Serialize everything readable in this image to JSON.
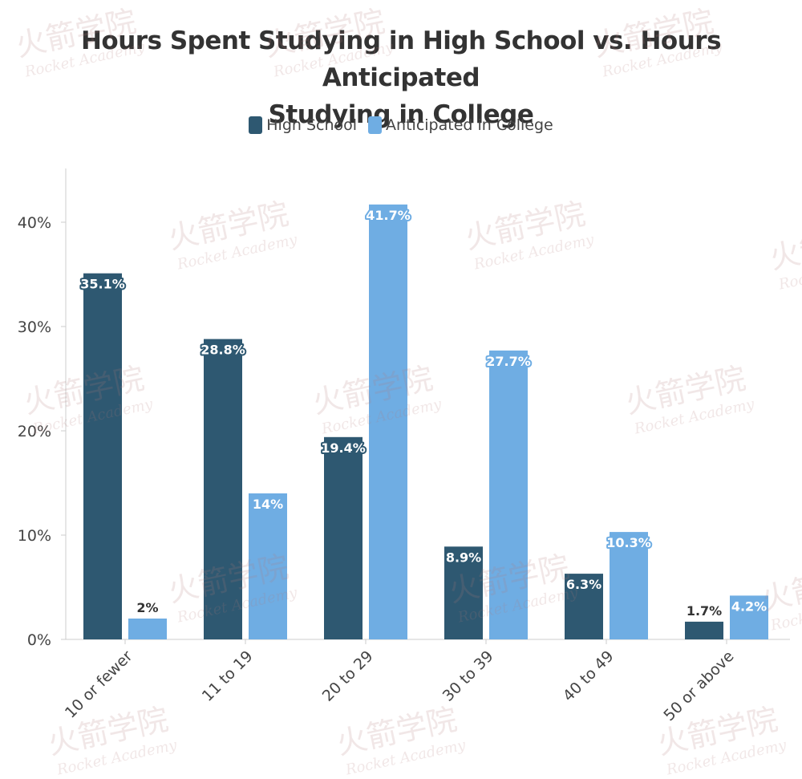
{
  "title_line1": "Hours Spent Studying in High School vs. Hours Anticipated",
  "title_line2": "Studying in College",
  "watermark": {
    "cn": "火箭学院",
    "en": "Rocket Academy"
  },
  "colors": {
    "high_school": "#2e5871",
    "college": "#6fade3",
    "axis": "#cccccc",
    "label_text": "#ffffff"
  },
  "chart_data": {
    "type": "bar",
    "title": "Hours Spent Studying in High School vs. Hours Anticipated Studying in College",
    "categories": [
      "10 or fewer",
      "11 to 19",
      "20 to 29",
      "30 to 39",
      "40 to 49",
      "50 or above"
    ],
    "series": [
      {
        "name": "High School",
        "values": [
          35.1,
          28.8,
          19.4,
          8.9,
          6.3,
          1.7
        ],
        "labels": [
          "35.1%",
          "28.8%",
          "19.4%",
          "8.9%",
          "6.3%",
          "1.7%"
        ]
      },
      {
        "name": "Anticipated in College",
        "values": [
          2,
          14,
          41.7,
          27.7,
          10.3,
          4.2
        ],
        "labels": [
          "2%",
          "14%",
          "41.7%",
          "27.7%",
          "10.3%",
          "4.2%"
        ]
      }
    ],
    "yticks": [
      "0%",
      "10%",
      "20%",
      "30%",
      "40%"
    ],
    "ylim": [
      0,
      45
    ],
    "legend": "top-center",
    "grid": false
  }
}
